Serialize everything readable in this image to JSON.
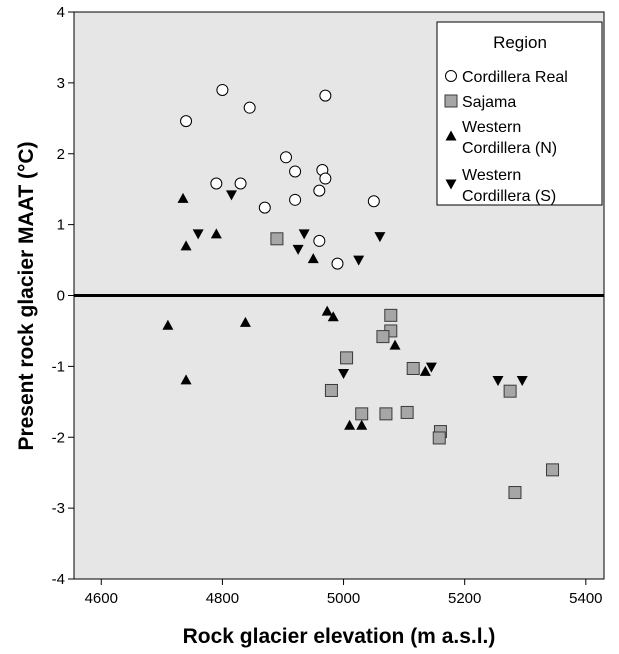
{
  "chart_data": {
    "type": "scatter",
    "title": "",
    "xlabel": "Rock glacier elevation (m a.s.l.)",
    "ylabel": "Present rock glacier MAAT (°C)",
    "xlim": [
      4555,
      5430
    ],
    "ylim": [
      -4,
      4
    ],
    "x_ticks": [
      4600,
      4800,
      5000,
      5200,
      5400
    ],
    "y_ticks": [
      -4,
      -3,
      -2,
      -1,
      0,
      1,
      2,
      3,
      4
    ],
    "x_tick_labels": [
      "4600",
      "4800",
      "5000",
      "5200",
      "5400"
    ],
    "y_tick_labels": [
      "-4",
      "-3",
      "-2",
      "-1",
      "0",
      "1",
      "2",
      "3",
      "4"
    ],
    "reference_line_y": 0,
    "background_color": "#e6e6e6",
    "legend_position": "top-right",
    "legend": {
      "title": "Region",
      "entries": [
        {
          "label_lines": [
            "Cordillera Real"
          ],
          "marker": "circle"
        },
        {
          "label_lines": [
            "Sajama"
          ],
          "marker": "square"
        },
        {
          "label_lines": [
            "Western",
            "Cordillera (N)"
          ],
          "marker": "triangle-up"
        },
        {
          "label_lines": [
            "Western",
            "Cordillera (S)"
          ],
          "marker": "triangle-down"
        }
      ]
    },
    "series": [
      {
        "name": "Cordillera Real",
        "marker": "circle",
        "color": "#ffffff",
        "points": [
          [
            4740,
            2.46
          ],
          [
            4800,
            2.9
          ],
          [
            4845,
            2.65
          ],
          [
            4970,
            2.82
          ],
          [
            4905,
            1.95
          ],
          [
            4920,
            1.75
          ],
          [
            4965,
            1.77
          ],
          [
            4970,
            1.65
          ],
          [
            4790,
            1.58
          ],
          [
            4830,
            1.58
          ],
          [
            4960,
            1.48
          ],
          [
            4920,
            1.35
          ],
          [
            5050,
            1.33
          ],
          [
            4870,
            1.24
          ],
          [
            4960,
            0.77
          ],
          [
            4990,
            0.45
          ]
        ]
      },
      {
        "name": "Sajama",
        "marker": "square",
        "color": "#a6a6a6",
        "points": [
          [
            4890,
            0.8
          ],
          [
            5078,
            -0.28
          ],
          [
            5078,
            -0.5
          ],
          [
            5065,
            -0.58
          ],
          [
            5005,
            -0.88
          ],
          [
            5115,
            -1.03
          ],
          [
            4980,
            -1.34
          ],
          [
            5275,
            -1.35
          ],
          [
            5030,
            -1.67
          ],
          [
            5070,
            -1.67
          ],
          [
            5105,
            -1.65
          ],
          [
            5160,
            -1.92
          ],
          [
            5158,
            -2.01
          ],
          [
            5345,
            -2.46
          ],
          [
            5283,
            -2.78
          ]
        ]
      },
      {
        "name": "Western Cordillera (N)",
        "marker": "triangle-up",
        "color": "#000000",
        "points": [
          [
            4735,
            1.37
          ],
          [
            4740,
            0.7
          ],
          [
            4790,
            0.87
          ],
          [
            4950,
            0.52
          ],
          [
            4710,
            -0.42
          ],
          [
            4838,
            -0.38
          ],
          [
            4973,
            -0.22
          ],
          [
            4983,
            -0.3
          ],
          [
            5085,
            -0.7
          ],
          [
            5135,
            -1.07
          ],
          [
            4740,
            -1.19
          ],
          [
            5010,
            -1.83
          ],
          [
            5030,
            -1.83
          ]
        ]
      },
      {
        "name": "Western Cordillera (S)",
        "marker": "triangle-down",
        "color": "#000000",
        "points": [
          [
            4760,
            0.87
          ],
          [
            4815,
            1.42
          ],
          [
            4935,
            0.87
          ],
          [
            4925,
            0.65
          ],
          [
            5025,
            0.5
          ],
          [
            5060,
            0.83
          ],
          [
            5000,
            -1.1
          ],
          [
            5145,
            -1.01
          ],
          [
            5255,
            -1.2
          ],
          [
            5295,
            -1.2
          ]
        ]
      }
    ]
  }
}
